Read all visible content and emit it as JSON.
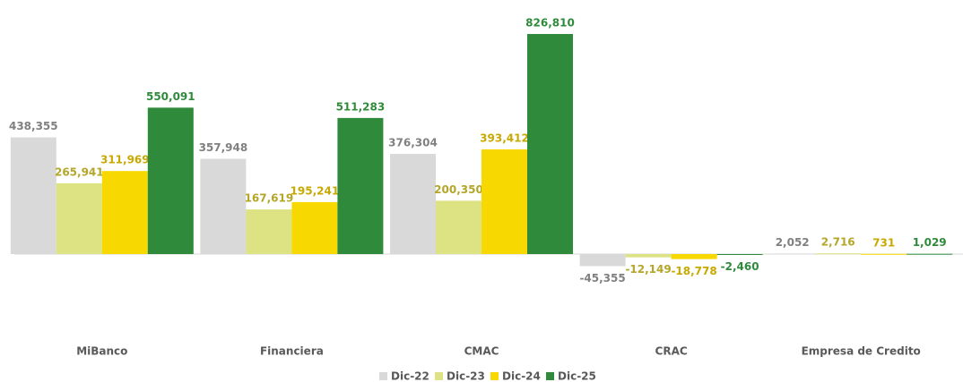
{
  "chart_data": {
    "type": "bar",
    "categories": [
      "MiBanco",
      "Financiera",
      "CMAC",
      "CRAC",
      "Empresa de Credito"
    ],
    "series": [
      {
        "name": "Dic-22",
        "color": "#d9d9d9",
        "label_color": "#808080",
        "values": [
          438355,
          357948,
          376304,
          -45355,
          2052
        ],
        "value_labels": [
          "438,355",
          "357,948",
          "376,304",
          "-45,355",
          "2,052"
        ]
      },
      {
        "name": "Dic-23",
        "color": "#dde283",
        "label_color": "#b3a628",
        "values": [
          265941,
          167619,
          200350,
          -12149,
          2716
        ],
        "value_labels": [
          "265,941",
          "167,619",
          "200,350",
          "-12,149",
          "2,716"
        ]
      },
      {
        "name": "Dic-24",
        "color": "#f7d800",
        "label_color": "#c9a800",
        "values": [
          311969,
          195241,
          393412,
          -18778,
          731
        ],
        "value_labels": [
          "311,969",
          "195,241",
          "393,412",
          "-18,778",
          "731"
        ]
      },
      {
        "name": "Dic-25",
        "color": "#2f8a3c",
        "label_color": "#2f8a3c",
        "values": [
          550091,
          511283,
          826810,
          -2460,
          1029
        ],
        "value_labels": [
          "550,091",
          "511,283",
          "826,810",
          "-2,460",
          "1,029"
        ]
      }
    ]
  }
}
